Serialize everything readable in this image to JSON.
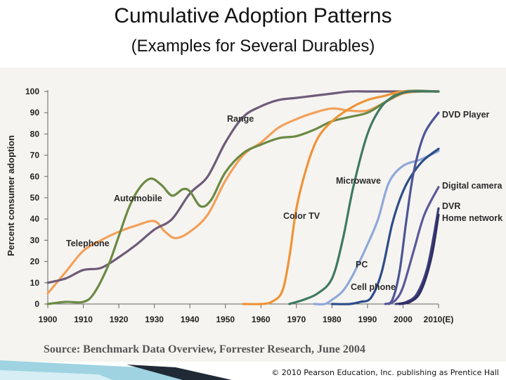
{
  "slide": {
    "title": "Cumulative Adoption Patterns",
    "subtitle": "(Examples for Several Durables)",
    "source": "Source: Benchmark Data Overview, Forrester Research, June 2004",
    "copyright": "© 2010 Pearson Education, Inc. publishing as Prentice Hall"
  },
  "chart_data": {
    "type": "line",
    "title": "Cumulative Adoption Patterns",
    "subtitle": "(Examples for Several Durables)",
    "xlabel": "",
    "ylabel": "Percent consumer adoption",
    "xlim": [
      1900,
      2010
    ],
    "ylim": [
      0,
      100
    ],
    "grid": false,
    "x_ticks": [
      1900,
      1910,
      1920,
      1930,
      1940,
      1950,
      1960,
      1970,
      1980,
      1990,
      2000,
      2010
    ],
    "x_tick_labels": [
      "1900",
      "1910",
      "1920",
      "1930",
      "1940",
      "1950",
      "1960",
      "1970",
      "1980",
      "1990",
      "2000",
      "2010(E)"
    ],
    "y_ticks": [
      0,
      10,
      20,
      30,
      40,
      50,
      60,
      70,
      80,
      90,
      100
    ],
    "y_tick_labels": [
      "0",
      "10",
      "20",
      "30",
      "40",
      "50",
      "60",
      "70",
      "80",
      "90",
      "100"
    ],
    "series": [
      {
        "name": "Telephone",
        "color": "#f2a05a",
        "points": [
          [
            1900,
            5
          ],
          [
            1905,
            15
          ],
          [
            1910,
            25
          ],
          [
            1915,
            30
          ],
          [
            1920,
            34
          ],
          [
            1925,
            37
          ],
          [
            1930,
            39
          ],
          [
            1933,
            34
          ],
          [
            1936,
            31
          ],
          [
            1940,
            34
          ],
          [
            1945,
            42
          ],
          [
            1950,
            58
          ],
          [
            1955,
            70
          ],
          [
            1960,
            76
          ],
          [
            1965,
            83
          ],
          [
            1970,
            87
          ],
          [
            1975,
            90
          ],
          [
            1980,
            92
          ],
          [
            1985,
            91
          ],
          [
            1990,
            91
          ],
          [
            1995,
            95
          ],
          [
            2000,
            99
          ],
          [
            2005,
            100
          ],
          [
            2010,
            100
          ]
        ]
      },
      {
        "name": "Range",
        "color": "#6e5b78",
        "points": [
          [
            1900,
            10
          ],
          [
            1905,
            12
          ],
          [
            1910,
            16
          ],
          [
            1915,
            17
          ],
          [
            1920,
            22
          ],
          [
            1925,
            28
          ],
          [
            1930,
            35
          ],
          [
            1935,
            40
          ],
          [
            1940,
            52
          ],
          [
            1945,
            60
          ],
          [
            1950,
            76
          ],
          [
            1955,
            88
          ],
          [
            1960,
            93
          ],
          [
            1965,
            96
          ],
          [
            1970,
            97
          ],
          [
            1975,
            98
          ],
          [
            1980,
            99
          ],
          [
            1985,
            100
          ],
          [
            1990,
            100
          ],
          [
            1995,
            100
          ],
          [
            2000,
            100
          ],
          [
            2010,
            100
          ]
        ]
      },
      {
        "name": "Automobile",
        "color": "#6b8a45",
        "points": [
          [
            1900,
            0
          ],
          [
            1905,
            1
          ],
          [
            1910,
            1
          ],
          [
            1913,
            5
          ],
          [
            1917,
            18
          ],
          [
            1920,
            32
          ],
          [
            1923,
            46
          ],
          [
            1926,
            55
          ],
          [
            1929,
            59
          ],
          [
            1932,
            56
          ],
          [
            1935,
            51
          ],
          [
            1938,
            54
          ],
          [
            1940,
            53
          ],
          [
            1943,
            46
          ],
          [
            1946,
            49
          ],
          [
            1950,
            62
          ],
          [
            1955,
            71
          ],
          [
            1960,
            75
          ],
          [
            1965,
            78
          ],
          [
            1970,
            79
          ],
          [
            1975,
            82
          ],
          [
            1980,
            86
          ],
          [
            1985,
            88
          ],
          [
            1990,
            90
          ],
          [
            1995,
            95
          ],
          [
            2000,
            100
          ],
          [
            2010,
            100
          ]
        ]
      },
      {
        "name": "Color TV",
        "color": "#ee9437",
        "points": [
          [
            1955,
            0
          ],
          [
            1960,
            0
          ],
          [
            1963,
            1
          ],
          [
            1966,
            6
          ],
          [
            1968,
            22
          ],
          [
            1970,
            45
          ],
          [
            1973,
            65
          ],
          [
            1976,
            78
          ],
          [
            1980,
            86
          ],
          [
            1985,
            92
          ],
          [
            1990,
            96
          ],
          [
            1995,
            98
          ],
          [
            2000,
            100
          ],
          [
            2010,
            100
          ]
        ]
      },
      {
        "name": "Microwave",
        "color": "#3f7a62",
        "points": [
          [
            1968,
            0
          ],
          [
            1972,
            2
          ],
          [
            1976,
            5
          ],
          [
            1980,
            12
          ],
          [
            1983,
            30
          ],
          [
            1986,
            55
          ],
          [
            1990,
            80
          ],
          [
            1994,
            93
          ],
          [
            1998,
            98
          ],
          [
            2002,
            100
          ],
          [
            2010,
            100
          ]
        ]
      },
      {
        "name": "PC",
        "color": "#8fa8d8",
        "points": [
          [
            1975,
            0
          ],
          [
            1978,
            0
          ],
          [
            1980,
            2
          ],
          [
            1983,
            6
          ],
          [
            1986,
            14
          ],
          [
            1990,
            28
          ],
          [
            1993,
            40
          ],
          [
            1996,
            57
          ],
          [
            2000,
            65
          ],
          [
            2005,
            68
          ],
          [
            2010,
            72
          ]
        ]
      },
      {
        "name": "Cell phone",
        "color": "#2d4d8a",
        "points": [
          [
            1980,
            0
          ],
          [
            1985,
            0
          ],
          [
            1988,
            1
          ],
          [
            1991,
            3
          ],
          [
            1994,
            15
          ],
          [
            1997,
            38
          ],
          [
            2000,
            53
          ],
          [
            2003,
            62
          ],
          [
            2006,
            68
          ],
          [
            2010,
            73
          ]
        ]
      },
      {
        "name": "DVD Player",
        "color": "#4d5595",
        "points": [
          [
            1995,
            0
          ],
          [
            1997,
            2
          ],
          [
            1999,
            15
          ],
          [
            2001,
            40
          ],
          [
            2003,
            62
          ],
          [
            2006,
            80
          ],
          [
            2010,
            90
          ]
        ]
      },
      {
        "name": "Digital camera",
        "color": "#5a5a9a",
        "points": [
          [
            1996,
            0
          ],
          [
            1998,
            2
          ],
          [
            2000,
            8
          ],
          [
            2003,
            25
          ],
          [
            2006,
            42
          ],
          [
            2010,
            55
          ]
        ]
      },
      {
        "name": "DVR",
        "color": "#3e3e7a",
        "points": [
          [
            1998,
            0
          ],
          [
            2001,
            1
          ],
          [
            2004,
            5
          ],
          [
            2007,
            18
          ],
          [
            2010,
            45
          ]
        ]
      },
      {
        "name": "Home network",
        "color": "#2f2f66",
        "points": [
          [
            1999,
            0
          ],
          [
            2002,
            1
          ],
          [
            2005,
            6
          ],
          [
            2008,
            22
          ],
          [
            2010,
            42
          ]
        ]
      }
    ],
    "annotations": [
      {
        "text": "Telephone",
        "series": "Telephone"
      },
      {
        "text": "Range",
        "series": "Range"
      },
      {
        "text": "Automobile",
        "series": "Automobile"
      },
      {
        "text": "Color TV",
        "series": "Color TV"
      },
      {
        "text": "Microwave",
        "series": "Microwave"
      },
      {
        "text": "PC",
        "series": "PC"
      },
      {
        "text": "Cell phone",
        "series": "Cell phone"
      },
      {
        "text": "DVD Player",
        "series": "DVD Player"
      },
      {
        "text": "Digital camera",
        "series": "Digital camera"
      },
      {
        "text": "DVR",
        "series": "DVR"
      },
      {
        "text": "Home network",
        "series": "Home network"
      }
    ]
  }
}
